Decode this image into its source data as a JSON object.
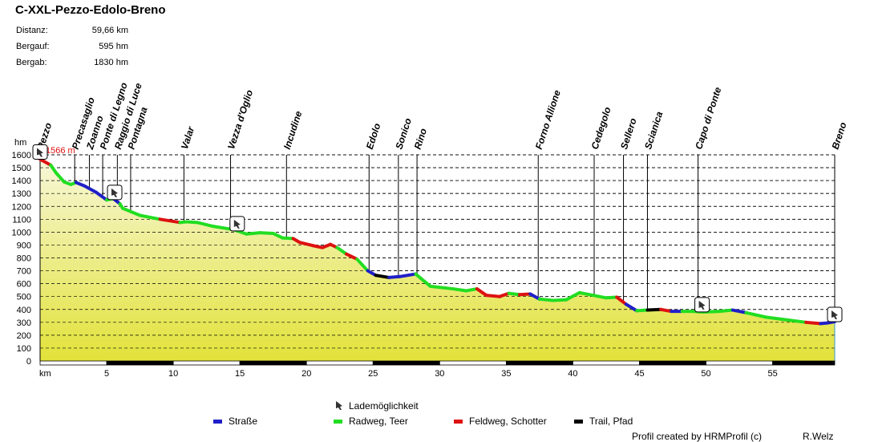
{
  "title": "C-XXL-Pezzo-Edolo-Breno",
  "stats": [
    {
      "label": "Distanz:",
      "value": "59,66 km"
    },
    {
      "label": "Bergauf:",
      "value": "595 hm"
    },
    {
      "label": "Bergab:",
      "value": "1830 hm"
    }
  ],
  "legend": {
    "charging": "Lademöglichkeit",
    "items": [
      {
        "label": "Straße",
        "color": "#1f1fc8"
      },
      {
        "label": "Radweg, Teer",
        "color": "#22dd22"
      },
      {
        "label": "Feldweg, Schotter",
        "color": "#dd1111"
      },
      {
        "label": "Trail, Pfad",
        "color": "#000000"
      }
    ]
  },
  "footer": {
    "credit": "Profil created by HRMProfil (c)",
    "author": "R.Welz"
  },
  "chart_data": {
    "type": "area",
    "title": "C-XXL-Pezzo-Edolo-Breno",
    "xlabel": "km",
    "ylabel": "hm",
    "xlim": [
      0,
      59.66
    ],
    "ylim": [
      0,
      1600
    ],
    "xticks": [
      5,
      10,
      15,
      20,
      25,
      30,
      35,
      40,
      45,
      50,
      55
    ],
    "yticks": [
      0,
      100,
      200,
      300,
      400,
      500,
      600,
      700,
      800,
      900,
      1000,
      1100,
      1200,
      1300,
      1400,
      1500,
      1600
    ],
    "max_label": "1566 m",
    "profile": [
      {
        "km": 0,
        "hm": 1566,
        "s": "g"
      },
      {
        "km": 0.8,
        "hm": 1520,
        "s": "r"
      },
      {
        "km": 1.2,
        "hm": 1460,
        "s": "g"
      },
      {
        "km": 1.8,
        "hm": 1390,
        "s": "g"
      },
      {
        "km": 2.3,
        "hm": 1370,
        "s": "g"
      },
      {
        "km": 2.7,
        "hm": 1385,
        "s": "g"
      },
      {
        "km": 3.3,
        "hm": 1360,
        "s": "b"
      },
      {
        "km": 4.2,
        "hm": 1310,
        "s": "b"
      },
      {
        "km": 5.0,
        "hm": 1250,
        "s": "b"
      },
      {
        "km": 5.5,
        "hm": 1260,
        "s": "g"
      },
      {
        "km": 6.0,
        "hm": 1220,
        "s": "b"
      },
      {
        "km": 6.2,
        "hm": 1185,
        "s": "g"
      },
      {
        "km": 7.5,
        "hm": 1130,
        "s": "g"
      },
      {
        "km": 9.0,
        "hm": 1100,
        "s": "g"
      },
      {
        "km": 10.5,
        "hm": 1075,
        "s": "r"
      },
      {
        "km": 11.0,
        "hm": 1080,
        "s": "g"
      },
      {
        "km": 11.8,
        "hm": 1075,
        "s": "g"
      },
      {
        "km": 13.0,
        "hm": 1045,
        "s": "g"
      },
      {
        "km": 14.5,
        "hm": 1020,
        "s": "g"
      },
      {
        "km": 15.5,
        "hm": 985,
        "s": "g"
      },
      {
        "km": 16.5,
        "hm": 995,
        "s": "g"
      },
      {
        "km": 17.5,
        "hm": 990,
        "s": "g"
      },
      {
        "km": 18.2,
        "hm": 955,
        "s": "g"
      },
      {
        "km": 19.0,
        "hm": 950,
        "s": "g"
      },
      {
        "km": 19.5,
        "hm": 920,
        "s": "r"
      },
      {
        "km": 20.5,
        "hm": 895,
        "s": "r"
      },
      {
        "km": 21.2,
        "hm": 880,
        "s": "r"
      },
      {
        "km": 21.8,
        "hm": 905,
        "s": "r"
      },
      {
        "km": 22.3,
        "hm": 880,
        "s": "r"
      },
      {
        "km": 23.0,
        "hm": 830,
        "s": "g"
      },
      {
        "km": 23.8,
        "hm": 790,
        "s": "r"
      },
      {
        "km": 24.6,
        "hm": 700,
        "s": "g"
      },
      {
        "km": 25.2,
        "hm": 665,
        "s": "b"
      },
      {
        "km": 26.2,
        "hm": 648,
        "s": "k"
      },
      {
        "km": 27.0,
        "hm": 655,
        "s": "b"
      },
      {
        "km": 28.2,
        "hm": 675,
        "s": "b"
      },
      {
        "km": 28.6,
        "hm": 640,
        "s": "g"
      },
      {
        "km": 29.3,
        "hm": 580,
        "s": "g"
      },
      {
        "km": 31.0,
        "hm": 560,
        "s": "g"
      },
      {
        "km": 32.0,
        "hm": 545,
        "s": "g"
      },
      {
        "km": 32.8,
        "hm": 560,
        "s": "g"
      },
      {
        "km": 33.5,
        "hm": 510,
        "s": "r"
      },
      {
        "km": 34.5,
        "hm": 500,
        "s": "r"
      },
      {
        "km": 35.2,
        "hm": 525,
        "s": "r"
      },
      {
        "km": 36.0,
        "hm": 515,
        "s": "g"
      },
      {
        "km": 36.8,
        "hm": 520,
        "s": "r"
      },
      {
        "km": 37.5,
        "hm": 480,
        "s": "b"
      },
      {
        "km": 38.5,
        "hm": 470,
        "s": "g"
      },
      {
        "km": 39.5,
        "hm": 475,
        "s": "g"
      },
      {
        "km": 40.5,
        "hm": 530,
        "s": "g"
      },
      {
        "km": 41.5,
        "hm": 510,
        "s": "g"
      },
      {
        "km": 42.5,
        "hm": 490,
        "s": "g"
      },
      {
        "km": 43.3,
        "hm": 495,
        "s": "g"
      },
      {
        "km": 44.0,
        "hm": 440,
        "s": "r"
      },
      {
        "km": 44.8,
        "hm": 390,
        "s": "b"
      },
      {
        "km": 45.6,
        "hm": 395,
        "s": "g"
      },
      {
        "km": 46.6,
        "hm": 400,
        "s": "k"
      },
      {
        "km": 47.4,
        "hm": 385,
        "s": "r"
      },
      {
        "km": 48.2,
        "hm": 385,
        "s": "b"
      },
      {
        "km": 49.0,
        "hm": 385,
        "s": "g"
      },
      {
        "km": 49.8,
        "hm": 380,
        "s": "g"
      },
      {
        "km": 51.0,
        "hm": 385,
        "s": "g"
      },
      {
        "km": 52.0,
        "hm": 395,
        "s": "g"
      },
      {
        "km": 53.0,
        "hm": 375,
        "s": "b"
      },
      {
        "km": 54.5,
        "hm": 340,
        "s": "g"
      },
      {
        "km": 56.0,
        "hm": 320,
        "s": "g"
      },
      {
        "km": 57.5,
        "hm": 300,
        "s": "g"
      },
      {
        "km": 58.6,
        "hm": 290,
        "s": "r"
      },
      {
        "km": 59.1,
        "hm": 295,
        "s": "b"
      },
      {
        "km": 59.66,
        "hm": 305,
        "s": "b"
      }
    ],
    "waypoints": [
      {
        "name": "Pezzo",
        "km": 0
      },
      {
        "name": "Precasaglio",
        "km": 2.6
      },
      {
        "name": "Zoanno",
        "km": 3.7
      },
      {
        "name": "Ponte di Legno",
        "km": 4.7
      },
      {
        "name": "Raggio di Luce",
        "km": 5.8
      },
      {
        "name": "Pontagna",
        "km": 6.8
      },
      {
        "name": "Valar",
        "km": 10.8
      },
      {
        "name": "Vezza d'Oglio",
        "km": 14.3
      },
      {
        "name": "Incudine",
        "km": 18.5
      },
      {
        "name": "Edolo",
        "km": 24.7
      },
      {
        "name": "Sonico",
        "km": 26.9
      },
      {
        "name": "Rino",
        "km": 28.3
      },
      {
        "name": "Forno Allione",
        "km": 37.4
      },
      {
        "name": "Cedegolo",
        "km": 41.6
      },
      {
        "name": "Sellero",
        "km": 43.8
      },
      {
        "name": "Scianica",
        "km": 45.6
      },
      {
        "name": "Capo di Ponte",
        "km": 49.4
      },
      {
        "name": "Breno",
        "km": 59.66
      }
    ],
    "charging_points": [
      0,
      5.6,
      14.8,
      49.7,
      59.66
    ]
  }
}
